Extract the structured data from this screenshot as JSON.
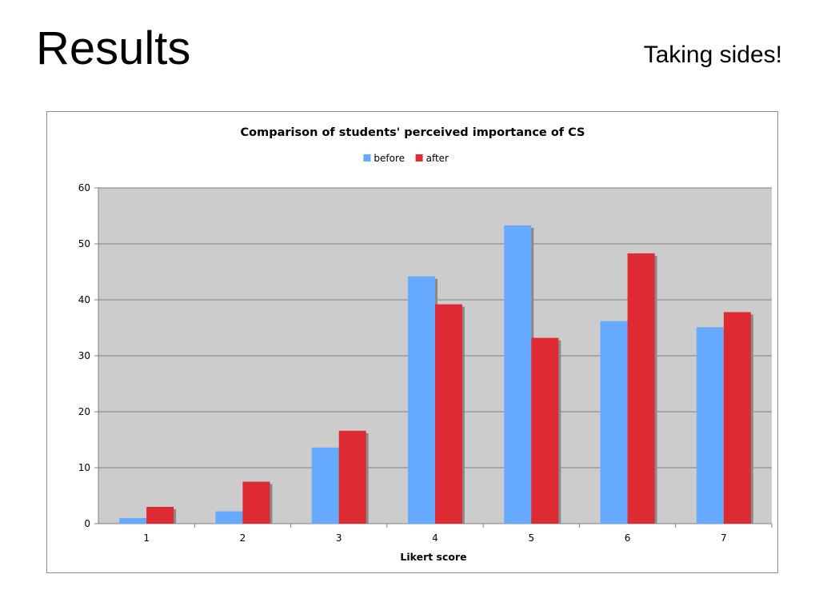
{
  "slide": {
    "title": "Results",
    "subtitle": "Taking sides!"
  },
  "chart_data": {
    "type": "bar",
    "title": "Comparison of students' perceived importance of CS",
    "xlabel": "Likert score",
    "ylabel": "",
    "categories": [
      "1",
      "2",
      "3",
      "4",
      "5",
      "6",
      "7"
    ],
    "series": [
      {
        "name": "before",
        "color": "#66aaff",
        "values": [
          1,
          2.2,
          13.6,
          44.2,
          53.3,
          36.2,
          35.1
        ]
      },
      {
        "name": "after",
        "color": "#dd2a33",
        "values": [
          3,
          7.5,
          16.6,
          39.2,
          33.2,
          48.3,
          37.8
        ]
      }
    ],
    "ylim": [
      0,
      60
    ],
    "yticks": [
      "0",
      "10",
      "20",
      "30",
      "40",
      "50",
      "60"
    ],
    "grid": true,
    "legend_position": "top-center",
    "plot_background": "#cccccc"
  }
}
